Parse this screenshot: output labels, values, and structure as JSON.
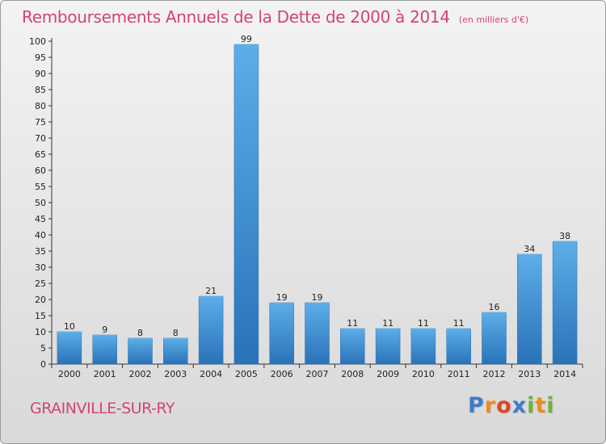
{
  "chart_data": {
    "type": "bar",
    "title": "Remboursements Annuels de la Dette de 2000 à 2014",
    "subtitle": "(en milliers d'€)",
    "categories": [
      "2000",
      "2001",
      "2002",
      "2003",
      "2004",
      "2005",
      "2006",
      "2007",
      "2008",
      "2009",
      "2010",
      "2011",
      "2012",
      "2013",
      "2014"
    ],
    "values": [
      10,
      9,
      8,
      8,
      21,
      99,
      19,
      19,
      11,
      11,
      11,
      11,
      16,
      34,
      38
    ],
    "ylim": [
      0,
      100
    ],
    "yticks": [
      0,
      5,
      10,
      15,
      20,
      25,
      30,
      35,
      40,
      45,
      50,
      55,
      60,
      65,
      70,
      75,
      80,
      85,
      90,
      95,
      100
    ],
    "grid": false,
    "bar_color": "#3f8fd6",
    "bar_color_light": "#5caee8",
    "bar_color_dark": "#2a72b8"
  },
  "footer": {
    "commune": "GRAINVILLE-SUR-RY",
    "logo_letters": [
      {
        "ch": "P",
        "color": "#3d7dc8"
      },
      {
        "ch": "r",
        "color": "#f08a1c"
      },
      {
        "ch": "o",
        "color": "#e0452a"
      },
      {
        "ch": "x",
        "color": "#3d7dc8"
      },
      {
        "ch": "i",
        "color": "#6fb23a"
      },
      {
        "ch": "t",
        "color": "#f08a1c"
      },
      {
        "ch": "i",
        "color": "#6fb23a"
      }
    ]
  },
  "colors": {
    "accent": "#d2456c",
    "axis": "#333333"
  }
}
